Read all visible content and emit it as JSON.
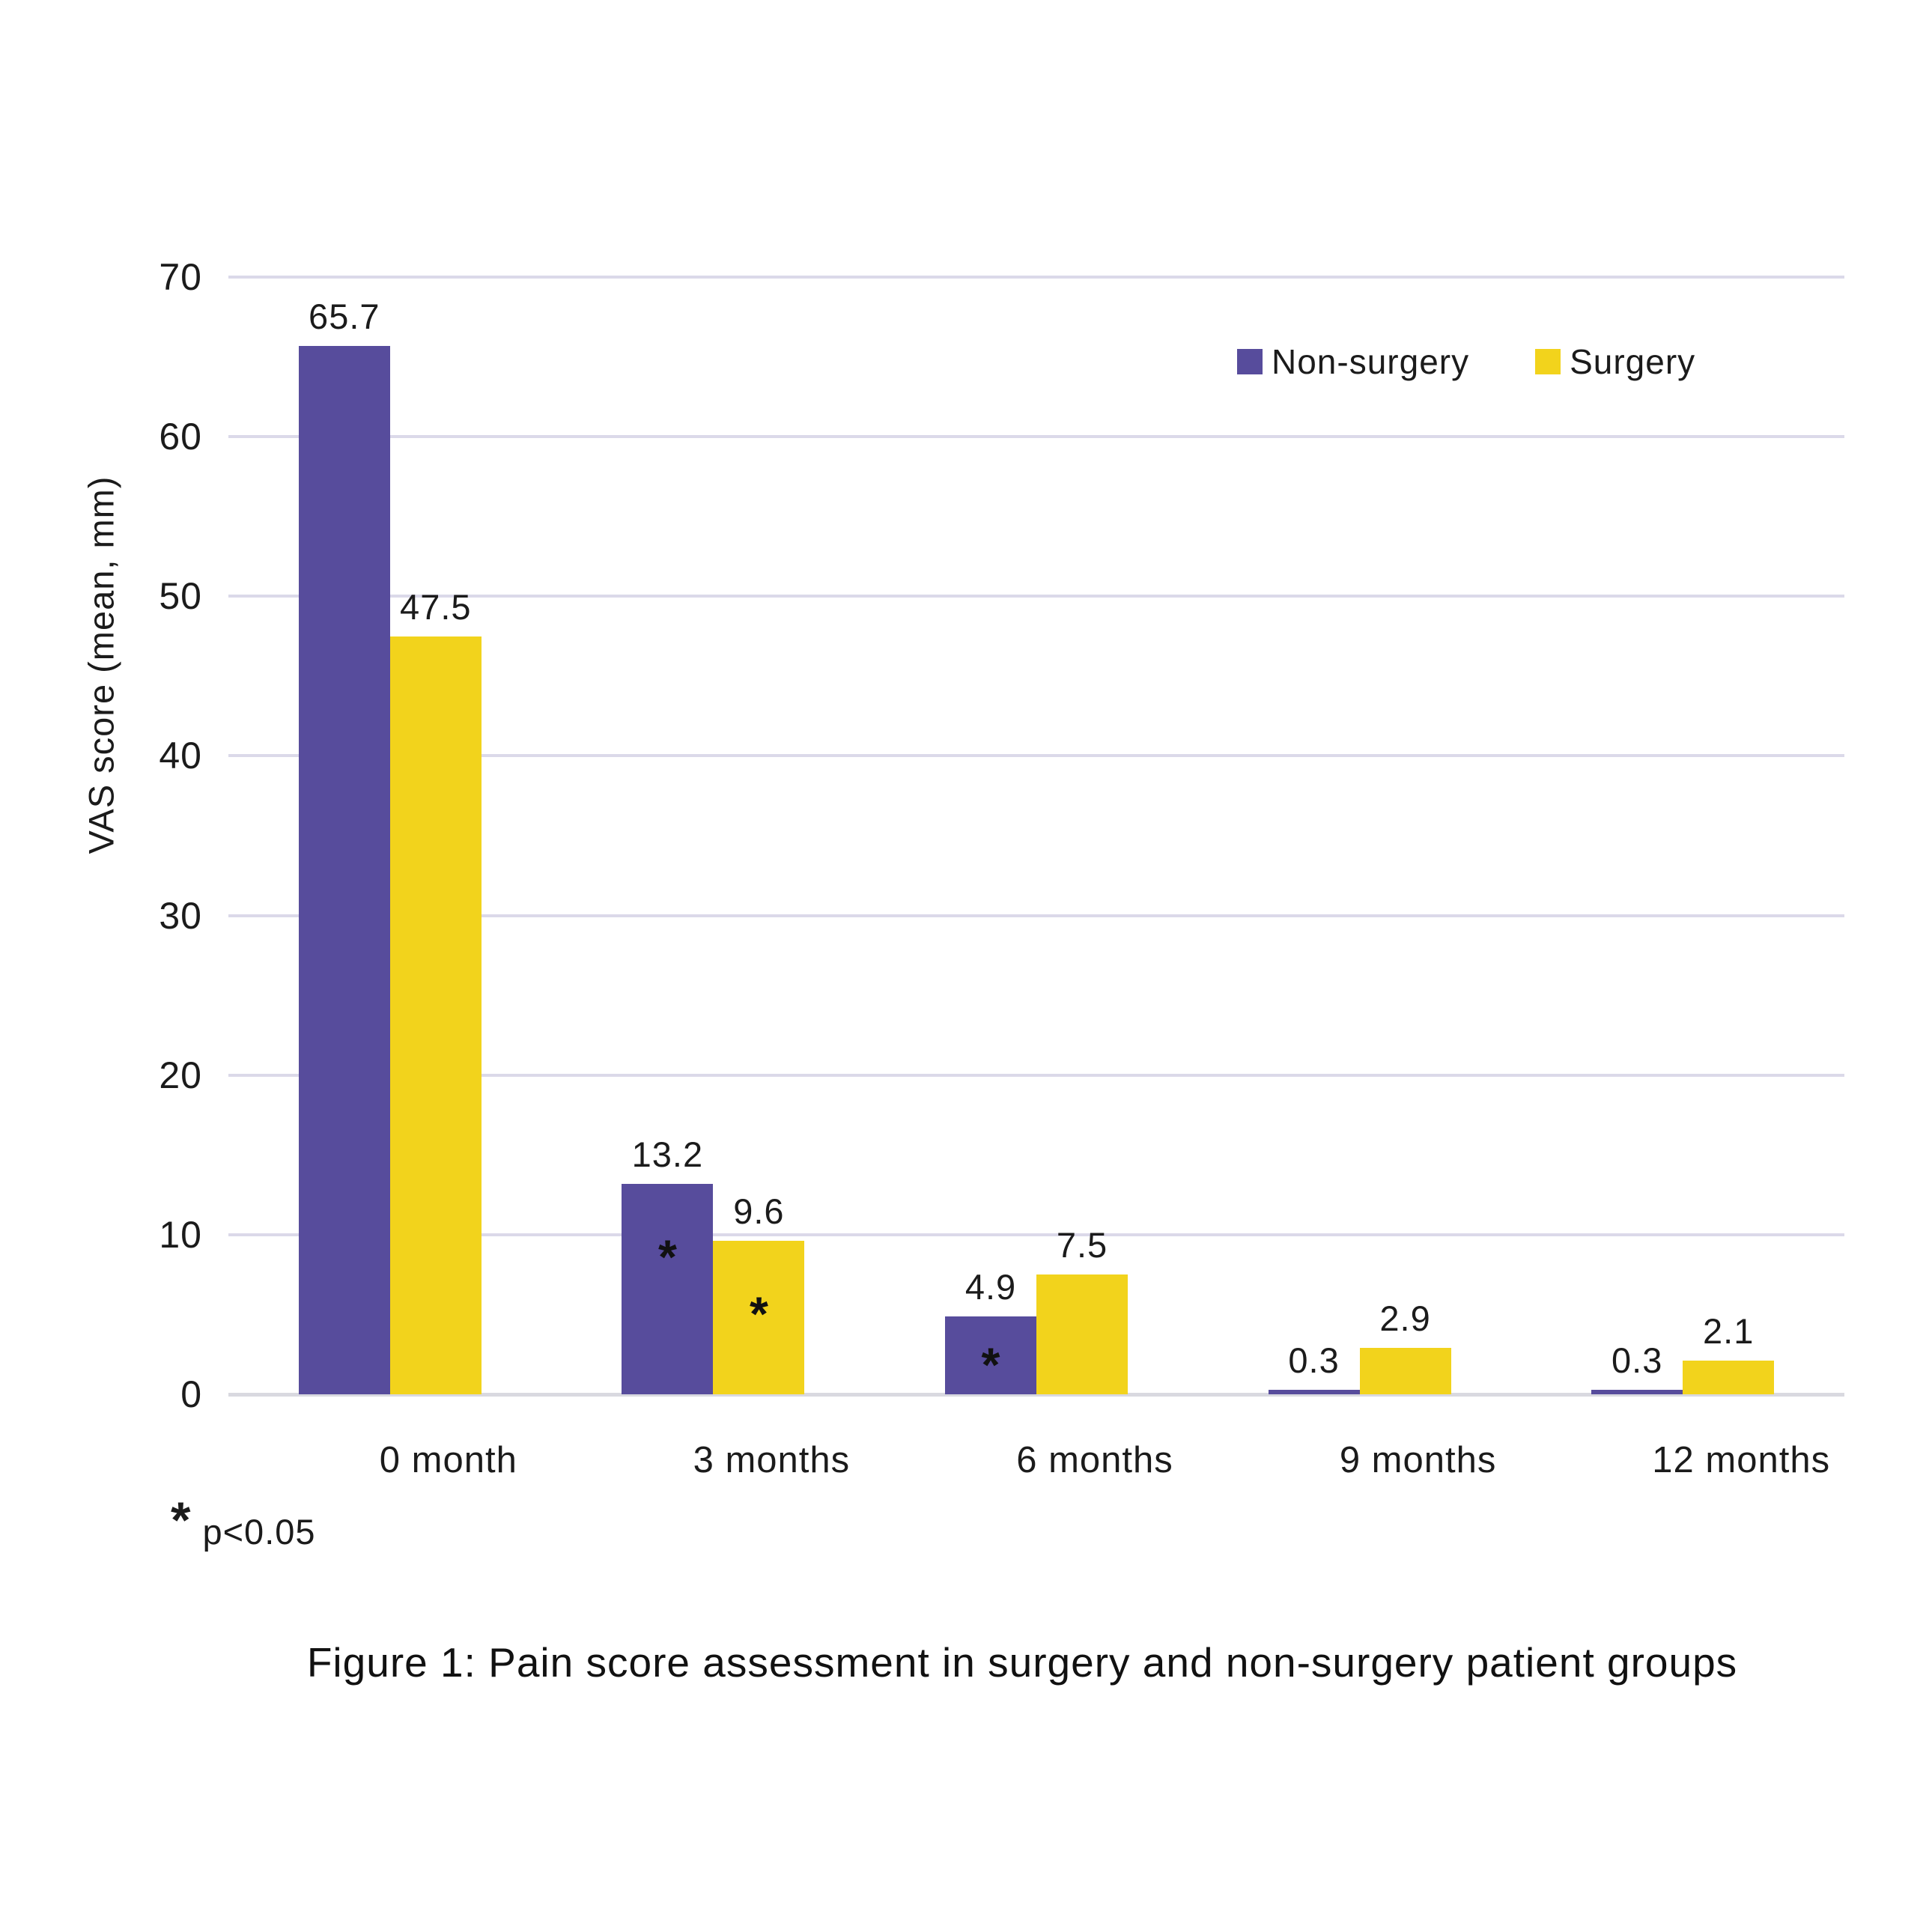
{
  "chart_data": {
    "type": "bar",
    "title": "",
    "ylabel": "VAS score (mean, mm)",
    "xlabel": "",
    "ylim": [
      0,
      70
    ],
    "yticks": [
      0,
      10,
      20,
      30,
      40,
      50,
      60,
      70
    ],
    "grid": "horizontal",
    "legend_position": "top-right",
    "categories": [
      "0 month",
      "3 months",
      "6 months",
      "9 months",
      "12 months"
    ],
    "series": [
      {
        "name": "Non-surgery",
        "color": "#574C9C",
        "values": [
          65.7,
          13.2,
          4.9,
          0.3,
          0.3
        ],
        "significant": [
          false,
          true,
          true,
          false,
          false
        ]
      },
      {
        "name": "Surgery",
        "color": "#F2D31C",
        "values": [
          47.5,
          9.6,
          7.5,
          2.9,
          2.1
        ],
        "significant": [
          false,
          true,
          false,
          false,
          false
        ]
      }
    ],
    "annotation_symbol": "*",
    "footnote": {
      "symbol": "*",
      "text": "p<0.05"
    },
    "caption": "Figure 1: Pain score assessment in surgery and non-surgery patient groups"
  },
  "colors": {
    "grid": "#dbd9e9",
    "baseline": "#d9d9e0",
    "text": "#1b1b1b"
  }
}
